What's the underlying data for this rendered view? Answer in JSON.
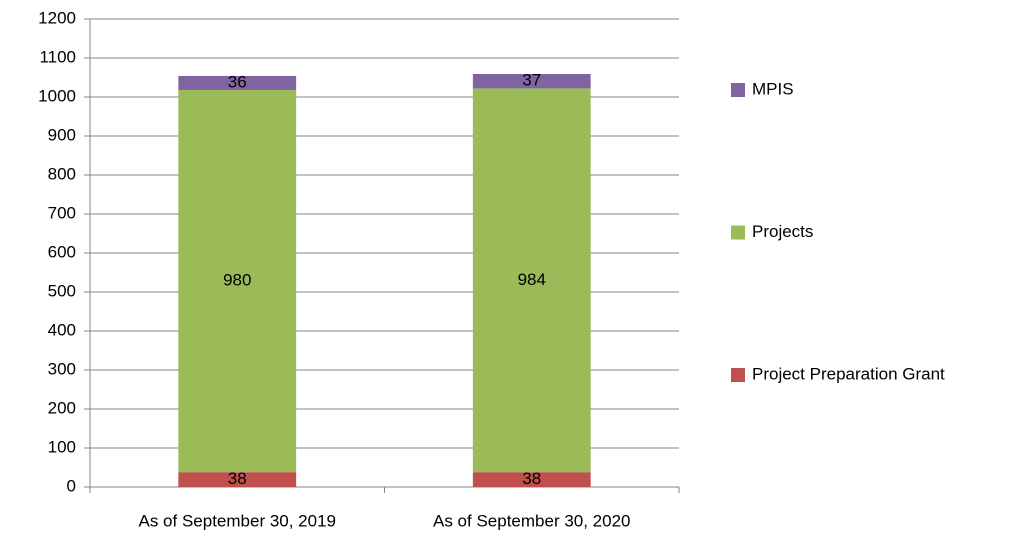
{
  "chart_data": {
    "type": "stacked_bar",
    "categories": [
      "As of September 30, 2019",
      "As of September 30, 2020"
    ],
    "series": [
      {
        "name": "Project Preparation Grant",
        "color": "#c0504d",
        "values": [
          38,
          38
        ]
      },
      {
        "name": "Projects",
        "color": "#9bbb59",
        "values": [
          980,
          984
        ]
      },
      {
        "name": "MPIS",
        "color": "#8064a2",
        "values": [
          36,
          37
        ]
      }
    ],
    "ylim": [
      0,
      1200
    ],
    "yticks": [
      0,
      100,
      200,
      300,
      400,
      500,
      600,
      700,
      800,
      900,
      1000,
      1100,
      1200
    ],
    "grid": true,
    "data_labels": true,
    "legend": "right"
  }
}
